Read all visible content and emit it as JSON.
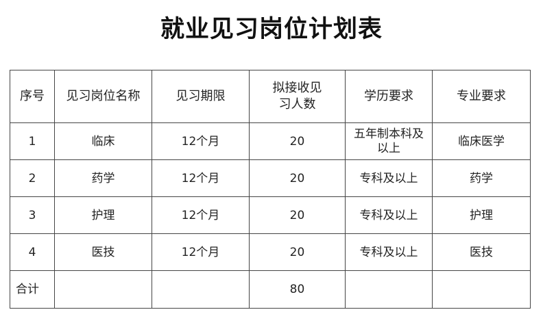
{
  "title": "就业见习岗位计划表",
  "table": {
    "headers": [
      "序号",
      "见习岗位名称",
      "见习期限",
      "拟接收见习人数",
      "学历要求",
      "专业要求"
    ],
    "rows": [
      [
        "1",
        "临床",
        "12个月",
        "20",
        "五年制本科及以上",
        "临床医学"
      ],
      [
        "2",
        "药学",
        "12个月",
        "20",
        "专科及以上",
        "药学"
      ],
      [
        "3",
        "护理",
        "12个月",
        "20",
        "专科及以上",
        "护理"
      ],
      [
        "4",
        "医技",
        "12个月",
        "20",
        "专科及以上",
        "医技"
      ]
    ],
    "total": {
      "label": "合计",
      "count": "80"
    }
  }
}
